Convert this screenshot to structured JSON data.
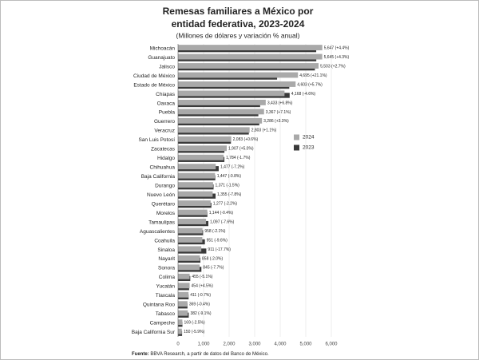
{
  "chart_data": {
    "type": "bar",
    "orientation": "horizontal",
    "title": [
      "Remesas familiares a México por",
      "entidad federativa, 2023-2024"
    ],
    "subtitle": "(Millones de dólares y variación % anual)",
    "categories": [
      "Michoacán",
      "Guanajuato",
      "Jalisco",
      "Ciudad de México",
      "Estado de México",
      "Chiapas",
      "Oaxaca",
      "Puebla",
      "Guerrero",
      "Veracruz",
      "San Luis Potosí",
      "Zacatecas",
      "Hidalgo",
      "Chihuahua",
      "Baja California",
      "Durango",
      "Nuevo León",
      "Querétaro",
      "Morelos",
      "Tamaulipas",
      "Aguascalientes",
      "Coahuila",
      "Sinaloa",
      "Nayarit",
      "Sonora",
      "Colima",
      "Yucatán",
      "Tlaxcala",
      "Quintana Roo",
      "Tabasco",
      "Campeche",
      "Baja California Sur"
    ],
    "series": [
      {
        "name": "2024",
        "color": "#a9a9a9",
        "values": [
          5647,
          5645,
          5503,
          4695,
          4603,
          4168,
          3433,
          3367,
          3286,
          2803,
          2083,
          1907,
          1784,
          1477,
          1447,
          1371,
          1355,
          1277,
          1144,
          1097,
          958,
          951,
          911,
          858,
          845,
          455,
          454,
          411,
          369,
          382,
          169,
          150
        ],
        "value_labels": [
          "5,647 (+4.4%)",
          "5,645 (+4.3%)",
          "5,503 (+2.7%)",
          "4,695 (+21.1%)",
          "4,603 (+5.7%)",
          "4,168 (-4.6%)",
          "3,433 (+6.8%)",
          "3,367 (+7.1%)",
          "3,286 (+3.3%)",
          "2,803 (+1.1%)",
          "2,083 (+0.6%)",
          "1,907 (+5.0%)",
          "1,784 (-1.7%)",
          "1,477 (-7.2%)",
          "1,447 (-0.8%)",
          "1,371 (-1.5%)",
          "1,355 (-7.8%)",
          "1,277 (-2.2%)",
          "1,144 (-0.4%)",
          "1,097 (-7.6%)",
          "958 (-2.1%)",
          "951 (-9.6%)",
          "911 (-17.7%)",
          "858 (-2.0%)",
          "845 (-7.7%)",
          "455 (-5.1%)",
          "454 (+4.5%)",
          "411 (-0.7%)",
          "369 (-0.4%)",
          "382 (-9.1%)",
          "169 (-2.5%)",
          "150 (-5.9%)"
        ]
      },
      {
        "name": "2023",
        "color": "#3a3a3a",
        "values": [
          5409,
          5412,
          5358,
          3877,
          4355,
          4369,
          3214,
          3144,
          3181,
          2772,
          2071,
          1816,
          1815,
          1592,
          1459,
          1392,
          1470,
          1306,
          1149,
          1187,
          979,
          1052,
          1107,
          876,
          915,
          479,
          434,
          414,
          370,
          420,
          173,
          159
        ]
      }
    ],
    "xlim": [
      0,
      6000
    ],
    "xticks": [
      0,
      {
        "value": 1000,
        "label": "1,000"
      },
      {
        "value": 2000,
        "label": "2,000"
      },
      {
        "value": 3000,
        "label": "3,000"
      },
      {
        "value": 4000,
        "label": "4,000"
      },
      {
        "value": 5000,
        "label": "5,000"
      },
      {
        "value": 6000,
        "label": "6,000"
      }
    ],
    "grid": true,
    "legend": "right",
    "source_label": "Fuente:",
    "source_text": "BBVA Research, a partir de datos del Banco de México."
  }
}
